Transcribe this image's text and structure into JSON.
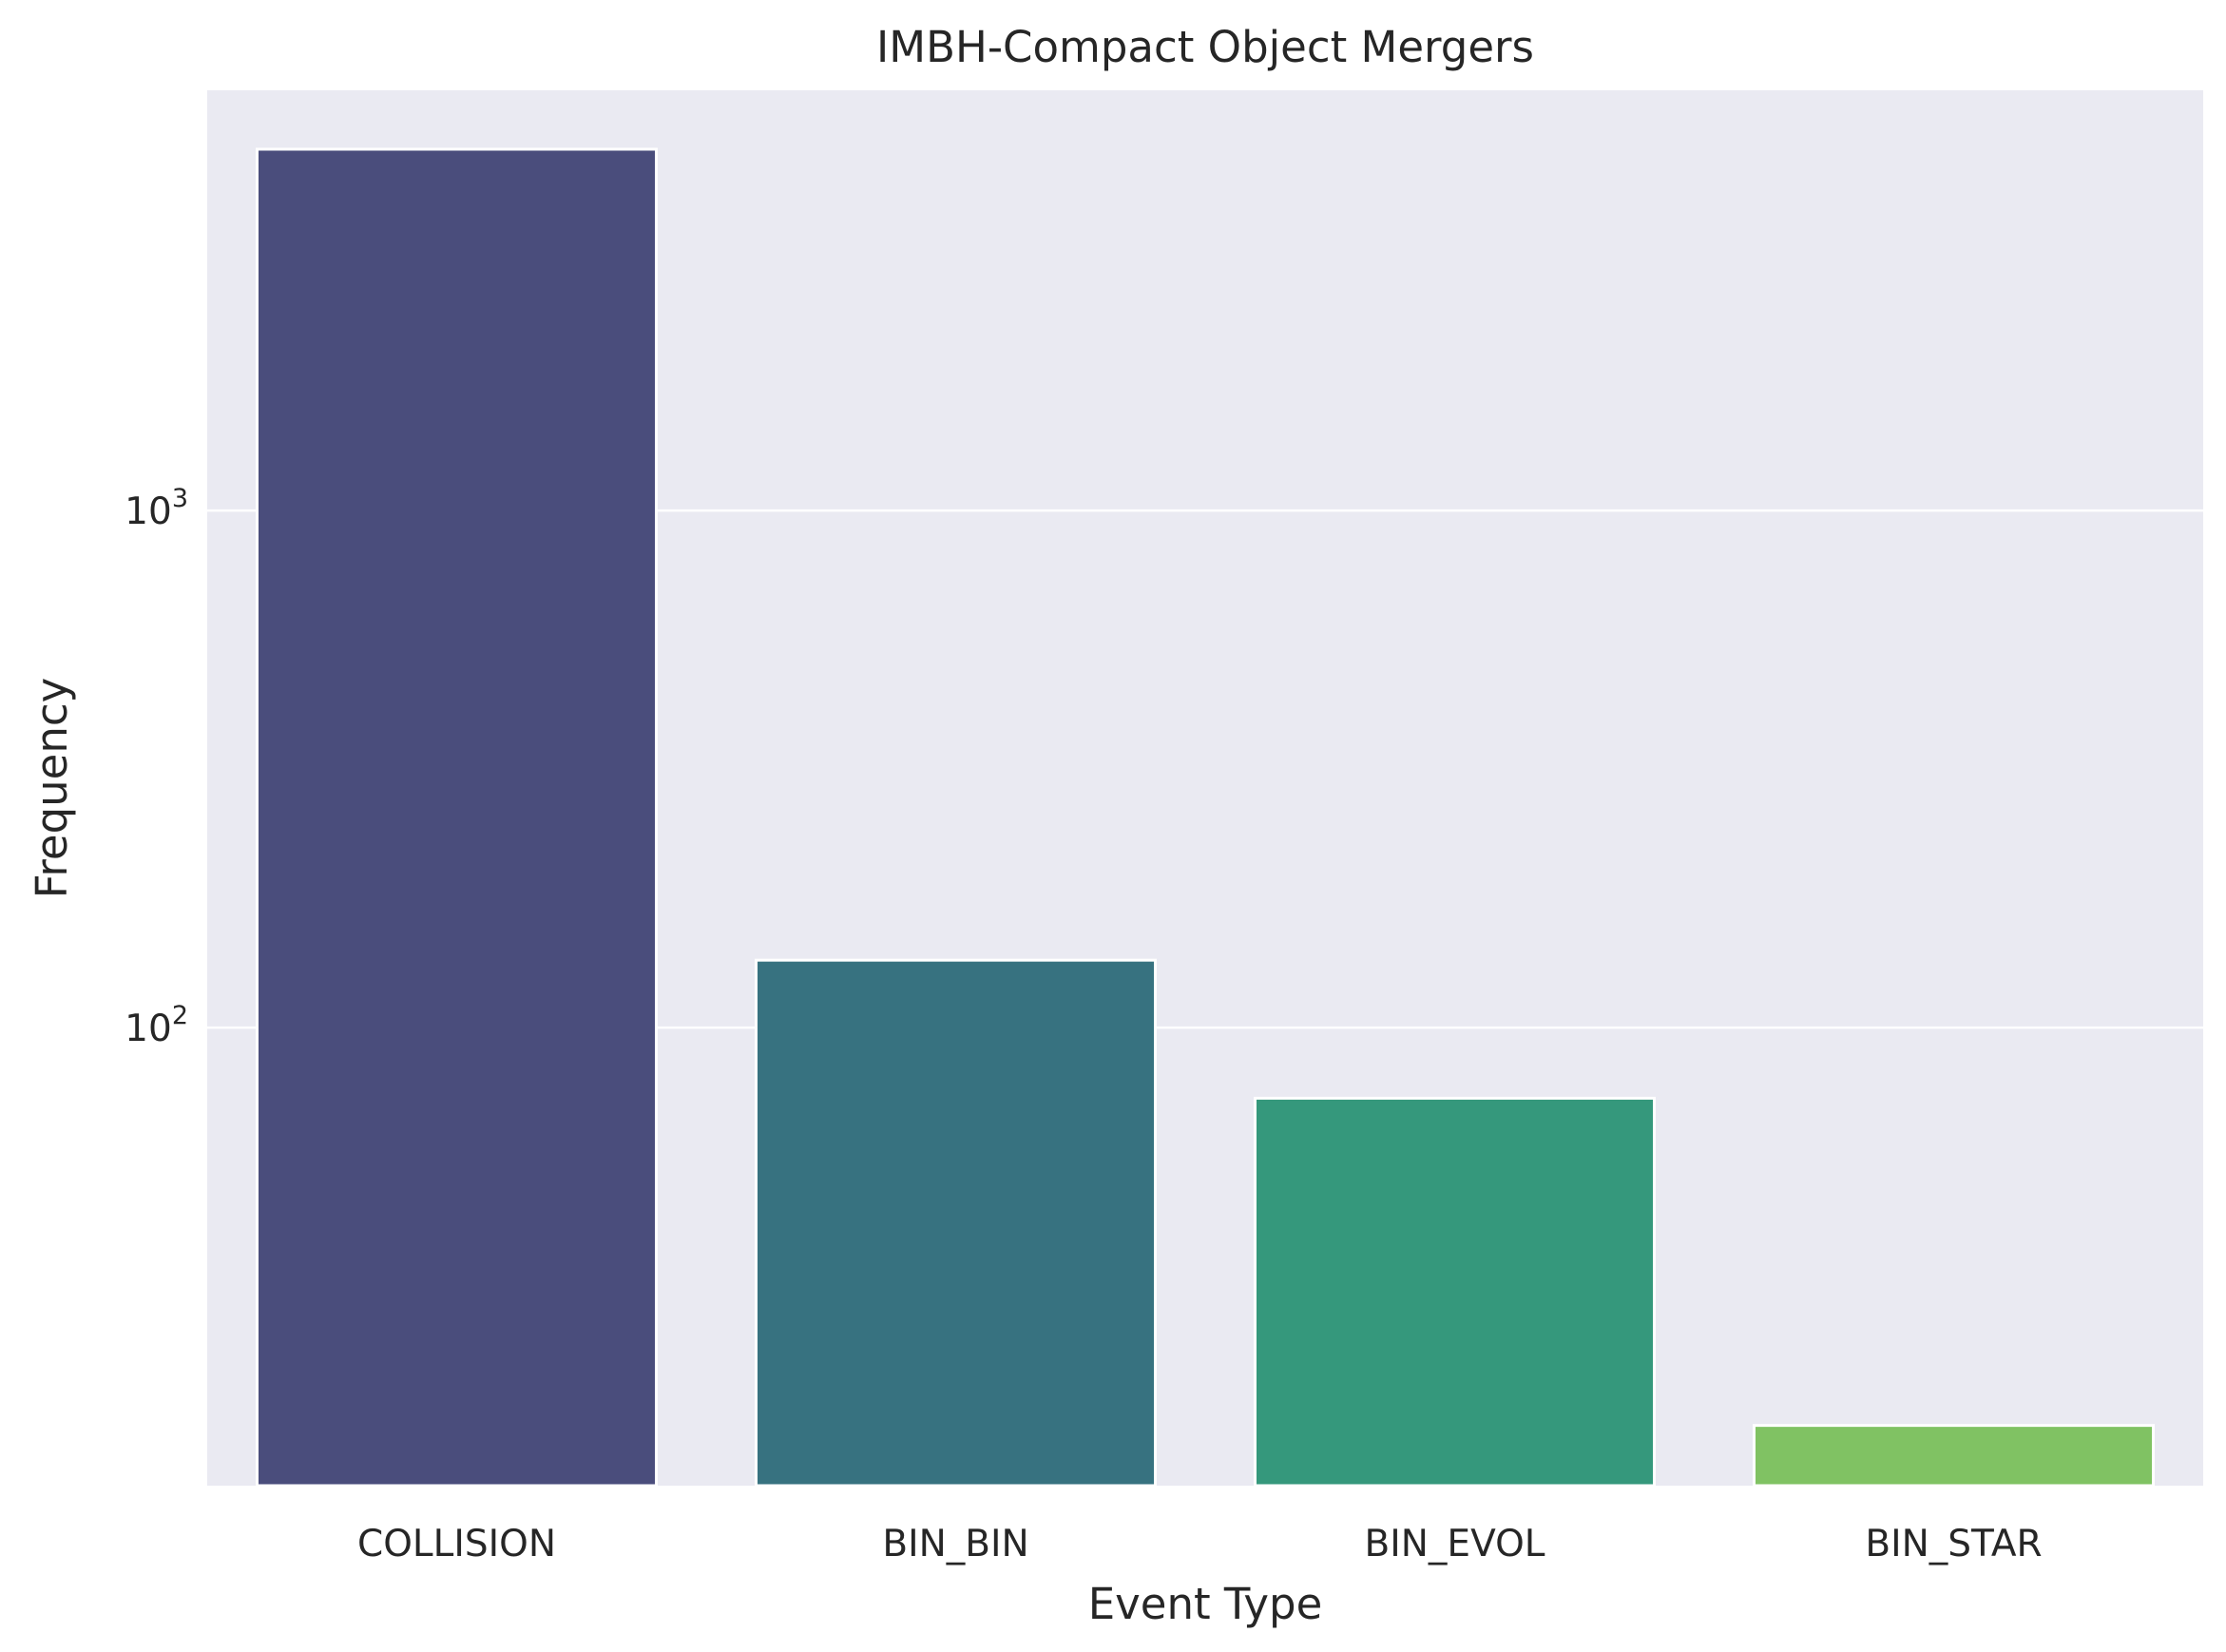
{
  "chart_data": {
    "type": "bar",
    "title": "IMBH-Compact Object Mergers",
    "xlabel": "Event Type",
    "ylabel": "Frequency",
    "categories": [
      "COLLISION",
      "BIN_BIN",
      "BIN_EVOL",
      "BIN_STAR"
    ],
    "values": [
      5000,
      135,
      73,
      17
    ],
    "bar_colors": [
      "#4a4d7c",
      "#377280",
      "#35987c",
      "#80c263"
    ],
    "y_scale": "log",
    "ylim": [
      13,
      6500
    ],
    "yticks": [
      {
        "value": 100,
        "base": "10",
        "exp": "2"
      },
      {
        "value": 1000,
        "base": "10",
        "exp": "3"
      }
    ],
    "grid": true,
    "background": "#eaeaf2",
    "grid_color": "#ffffff",
    "legend": "none"
  }
}
